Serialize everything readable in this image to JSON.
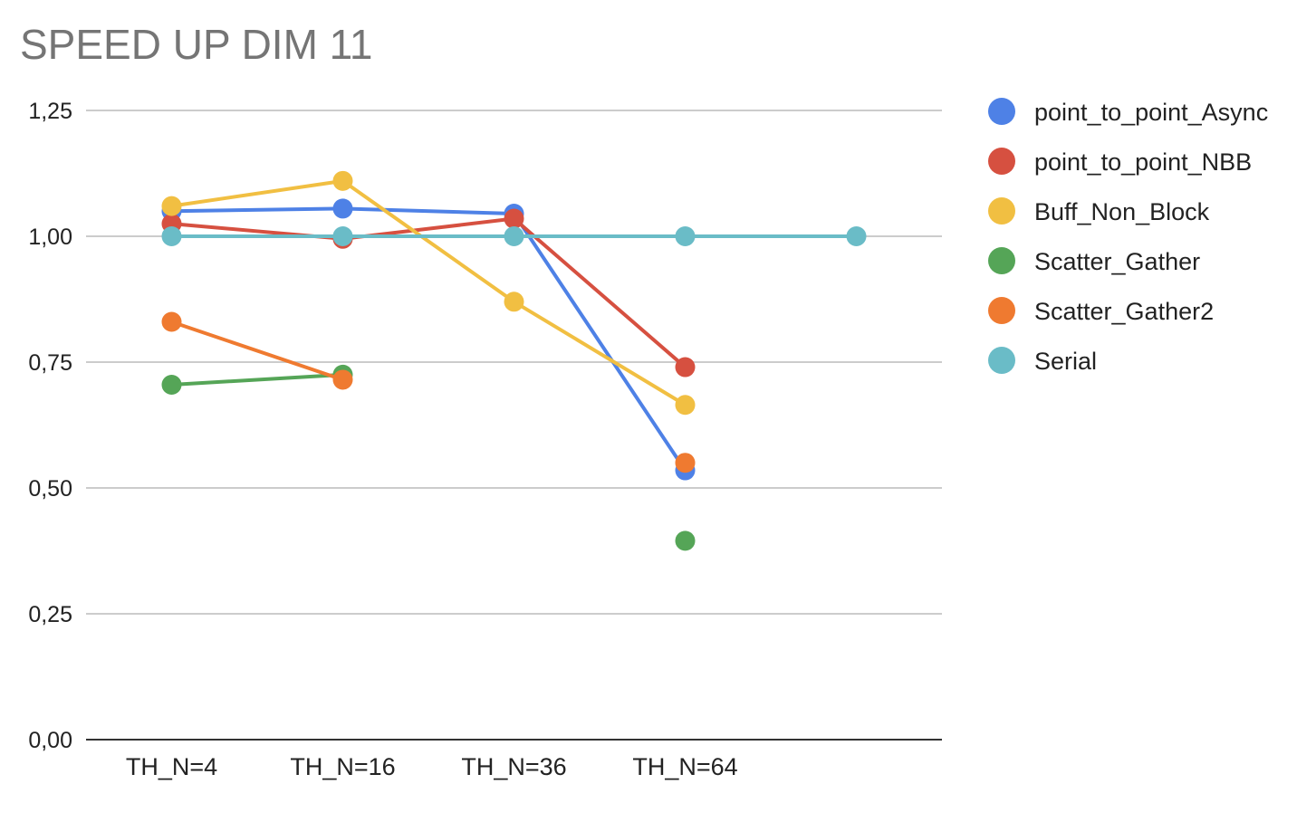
{
  "chart_data": {
    "type": "line",
    "title": "SPEED UP DIM 11",
    "xlabel": "",
    "ylabel": "",
    "categories": [
      "TH_N=4",
      "TH_N=16",
      "TH_N=36",
      "TH_N=64",
      ""
    ],
    "ylim": [
      0,
      1.25
    ],
    "yticks": [
      "0,00",
      "0,25",
      "0,50",
      "0,75",
      "1,00",
      "1,25"
    ],
    "ytick_values": [
      0,
      0.25,
      0.5,
      0.75,
      1.0,
      1.25
    ],
    "grid": true,
    "legend_position": "right",
    "series": [
      {
        "name": "point_to_point_Async",
        "color": "#4e81e6",
        "values": [
          1.05,
          1.055,
          1.045,
          0.535,
          null
        ]
      },
      {
        "name": "point_to_point_NBB",
        "color": "#d65040",
        "values": [
          1.025,
          0.995,
          1.035,
          0.74,
          null
        ]
      },
      {
        "name": "Buff_Non_Block",
        "color": "#f1bf42",
        "values": [
          1.06,
          1.11,
          0.87,
          0.665,
          null
        ]
      },
      {
        "name": "Scatter_Gather",
        "color": "#55a557",
        "values": [
          0.705,
          0.725,
          null,
          0.395,
          null
        ]
      },
      {
        "name": "Scatter_Gather2",
        "color": "#ef7a30",
        "values": [
          0.83,
          0.715,
          null,
          0.55,
          null
        ]
      },
      {
        "name": "Serial",
        "color": "#6abcc7",
        "values": [
          1.0,
          1.0,
          1.0,
          1.0,
          1.0
        ]
      }
    ]
  }
}
